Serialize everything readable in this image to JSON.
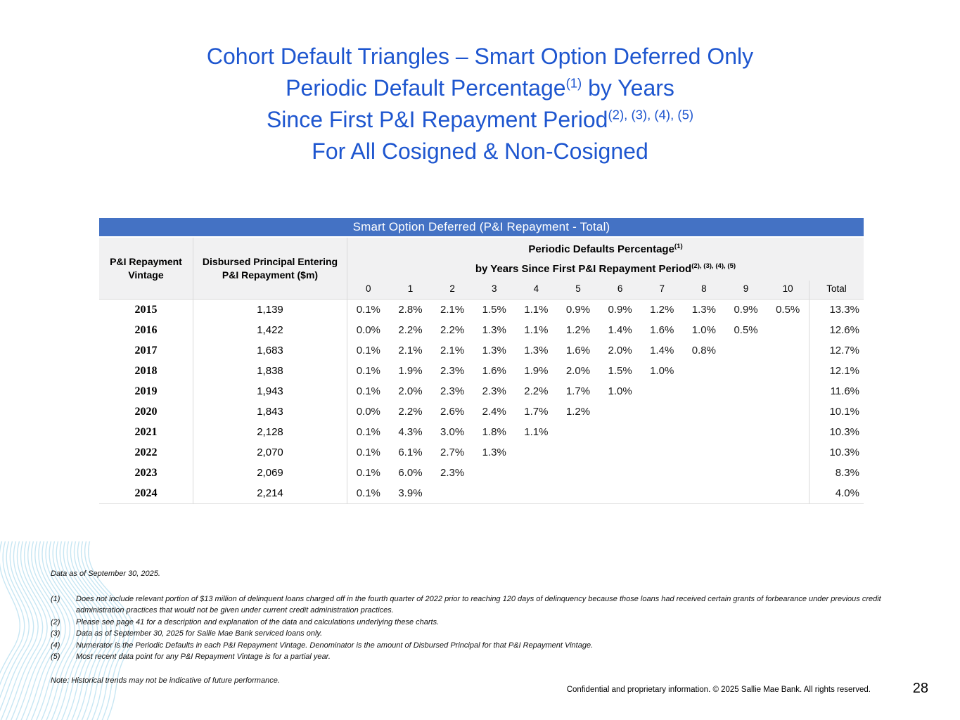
{
  "slide_title": {
    "color": "#1e56cf",
    "lines": [
      [
        {
          "t": "Cohort Default Triangles – Smart Option Deferred Only"
        }
      ],
      [
        {
          "t": "Periodic Default Percentage"
        },
        {
          "s": "(1)"
        },
        {
          "t": " by Years"
        }
      ],
      [
        {
          "t": "Since First P&I Repayment Period"
        },
        {
          "s": "(2), (3), (4), (5)"
        }
      ],
      [
        {
          "t": "For All Cosigned & Non-Cosigned"
        }
      ]
    ]
  },
  "table": {
    "banner": "Smart Option Deferred (P&I Repayment - Total)",
    "banner_color": "#4472c4",
    "header": {
      "vintage": "P&I Repayment\nVintage",
      "disbursed": "Disbursed Principal Entering\nP&I Repayment ($m)",
      "group_lines": [
        [
          {
            "t": "Periodic Defaults Percentage"
          },
          {
            "s": "(1)"
          }
        ],
        [
          {
            "t": "by Years Since First P&I Repayment Period"
          },
          {
            "s": "(2), (3), (4), (5)"
          }
        ]
      ],
      "year_columns": [
        "0",
        "1",
        "2",
        "3",
        "4",
        "5",
        "6",
        "7",
        "8",
        "9",
        "10"
      ],
      "total_label": "Total"
    },
    "rows": [
      {
        "vintage": "2015",
        "disbursed": "1,139",
        "values": [
          "0.1%",
          "2.8%",
          "2.1%",
          "1.5%",
          "1.1%",
          "0.9%",
          "0.9%",
          "1.2%",
          "1.3%",
          "0.9%",
          "0.5%"
        ],
        "total": "13.3%"
      },
      {
        "vintage": "2016",
        "disbursed": "1,422",
        "values": [
          "0.0%",
          "2.2%",
          "2.2%",
          "1.3%",
          "1.1%",
          "1.2%",
          "1.4%",
          "1.6%",
          "1.0%",
          "0.5%"
        ],
        "total": "12.6%"
      },
      {
        "vintage": "2017",
        "disbursed": "1,683",
        "values": [
          "0.1%",
          "2.1%",
          "2.1%",
          "1.3%",
          "1.3%",
          "1.6%",
          "2.0%",
          "1.4%",
          "0.8%"
        ],
        "total": "12.7%"
      },
      {
        "vintage": "2018",
        "disbursed": "1,838",
        "values": [
          "0.1%",
          "1.9%",
          "2.3%",
          "1.6%",
          "1.9%",
          "2.0%",
          "1.5%",
          "1.0%"
        ],
        "total": "12.1%"
      },
      {
        "vintage": "2019",
        "disbursed": "1,943",
        "values": [
          "0.1%",
          "2.0%",
          "2.3%",
          "2.3%",
          "2.2%",
          "1.7%",
          "1.0%"
        ],
        "total": "11.6%"
      },
      {
        "vintage": "2020",
        "disbursed": "1,843",
        "values": [
          "0.0%",
          "2.2%",
          "2.6%",
          "2.4%",
          "1.7%",
          "1.2%"
        ],
        "total": "10.1%"
      },
      {
        "vintage": "2021",
        "disbursed": "2,128",
        "values": [
          "0.1%",
          "4.3%",
          "3.0%",
          "1.8%",
          "1.1%"
        ],
        "total": "10.3%"
      },
      {
        "vintage": "2022",
        "disbursed": "2,070",
        "values": [
          "0.1%",
          "6.1%",
          "2.7%",
          "1.3%"
        ],
        "total": "10.3%"
      },
      {
        "vintage": "2023",
        "disbursed": "2,069",
        "values": [
          "0.1%",
          "6.0%",
          "2.3%"
        ],
        "total": "8.3%"
      },
      {
        "vintage": "2024",
        "disbursed": "2,214",
        "values": [
          "0.1%",
          "3.9%"
        ],
        "total": "4.0%"
      }
    ]
  },
  "footnotes": {
    "data_as_of": "Data as of September 30, 2025.",
    "items": [
      {
        "num": "(1)",
        "text": "Does not include relevant portion of $13 million of delinquent loans charged off in the fourth quarter of 2022 prior to reaching 120 days of delinquency because those loans had received certain grants of forbearance under previous credit administration practices that would not be given under current credit administration practices."
      },
      {
        "num": "(2)",
        "text": "Please see page 41 for a description and explanation of the data and calculations underlying these charts."
      },
      {
        "num": "(3)",
        "text": "Data as of September 30, 2025 for Sallie Mae Bank serviced loans only."
      },
      {
        "num": "(4)",
        "text": "Numerator is the Periodic Defaults in each P&I Repayment Vintage. Denominator is the amount of Disbursed Principal for that P&I Repayment Vintage."
      },
      {
        "num": "(5)",
        "text": "Most recent data point for any P&I Repayment Vintage is for a partial year."
      }
    ],
    "note": "Note: Historical trends may not be indicative of future performance."
  },
  "footer": {
    "confidential": "Confidential and proprietary information. © 2025 Sallie Mae Bank. All rights reserved.",
    "page_number": "28"
  }
}
